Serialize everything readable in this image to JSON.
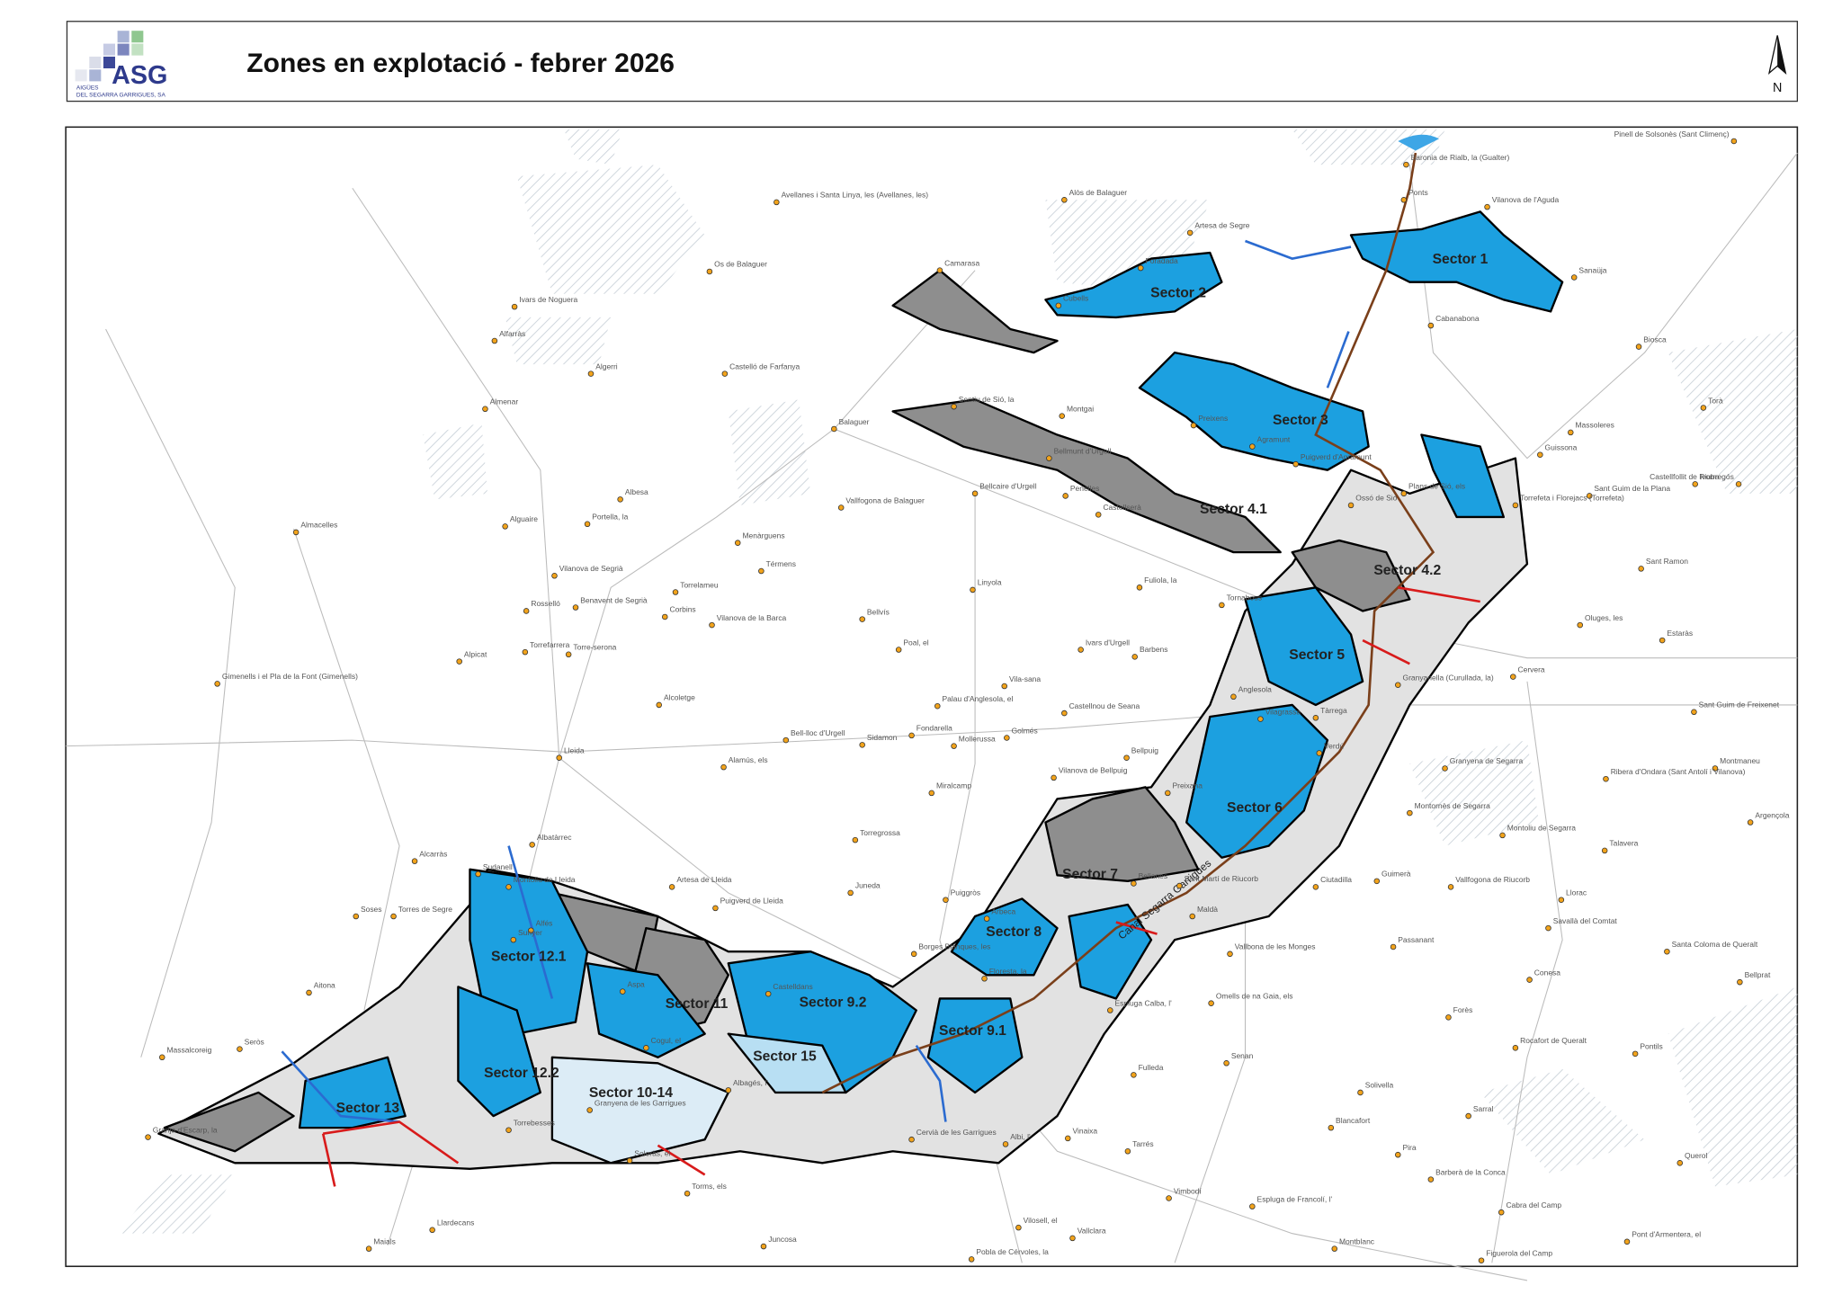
{
  "header": {
    "logo": "ASG",
    "logo_line1": "AIGÜES",
    "logo_line2": "DEL SEGARRA GARRIGUES, SA",
    "title": "Zones en explotació - febrer 2026",
    "north": "N"
  },
  "map": {
    "canal": "Canal Segarra Garrigues",
    "sectors": [
      "Sector 1",
      "Sector 2",
      "Sector 3",
      "Sector 4.1",
      "Sector 4.2",
      "Sector 5",
      "Sector 6",
      "Sector 7",
      "Sector 8",
      "Sector 9.1",
      "Sector 9.2",
      "Sector 10-14",
      "Sector 11",
      "Sector 12.1",
      "Sector 12.2",
      "Sector 13",
      "Sector 15"
    ],
    "towns": [
      "Baronia de Rialb, la (Gualter)",
      "Pinell de Solsonès (Sant Climenç)",
      "Ponts",
      "Vilanova de l'Aguda",
      "Avellanes i Santa Linya, les (Avellanes, les)",
      "Alòs de Balaguer",
      "Artesa de Segre",
      "Foradada",
      "Camarasa",
      "Os de Balaguer",
      "Sanaüja",
      "Ivars de Noguera",
      "Cubells",
      "Cabanabona",
      "Alfarràs",
      "Biosca",
      "Algerri",
      "Castelló de Farfanya",
      "Sentiu de Sió, la",
      "Almenar",
      "Montgai",
      "Torà",
      "Preixens",
      "Balaguer",
      "Massoleres",
      "Agramunt",
      "Bellmunt d'Urgell",
      "Puigverd d'Agramunt",
      "Guissona",
      "Ivorra",
      "Sant Guim de la Plana",
      "Castellfollit de Riubregós",
      "Albesa",
      "Bellcaire d'Urgell",
      "Penelles",
      "Plans de Sió, els",
      "Vallfogona de Balaguer",
      "Ossó de Sió",
      "Torrefeta i Florejacs (Torrefeta)",
      "Castellserà",
      "Almacelles",
      "Alguaire",
      "Portella, la",
      "Menàrguens",
      "Térmens",
      "Sant Ramon",
      "Vilanova de Segrià",
      "Torrelameu",
      "Linyola",
      "Fuliola, la",
      "Estaràs",
      "Rosselló",
      "Benavent de Segrià",
      "Corbins",
      "Tornabous",
      "Bellvís",
      "Vilanova de la Barca",
      "Oluges, les",
      "Ivars d'Urgell",
      "Poal, el",
      "Barbens",
      "Torrefarrera",
      "Torre-serona",
      "Alpicat",
      "Granyanella (Curullada, la)",
      "Cervera",
      "Gimenells i el Pla de la Font (Gimenells)",
      "Vila-sana",
      "Anglesola",
      "Palau d'Anglesola, el",
      "Alcoletge",
      "Castellnou de Seana",
      "Vilagrassa",
      "Tàrrega",
      "Sant Guim de Freixenet",
      "Bell-lloc d'Urgell",
      "Sidamon",
      "Fondarella",
      "Mollerussa",
      "Golmés",
      "Lleida",
      "Bellpuig",
      "Alamús, els",
      "Granyena de Segarra",
      "Montmaneu",
      "Verdú",
      "Ribera d'Ondara (Sant Antolí i Vilanova)",
      "Vilanova de Bellpuig",
      "Miralcamp",
      "Preixana",
      "Montornès de Segarra",
      "Argençola",
      "Montoliu de Segarra",
      "Torregrossa",
      "Talavera",
      "Albatàrrec",
      "Alcarràs",
      "Sudanell",
      "Montoliu de Lleida",
      "Belianes",
      "Sant Martí de Riucorb",
      "Ciutadilla",
      "Guimerà",
      "Vallfogona de Riucorb",
      "Artesa de Lleida",
      "Juneda",
      "Puiggròs",
      "Llorac",
      "Puigverd de Lleida",
      "Maldà",
      "Soses",
      "Torres de Segre",
      "Arbeca",
      "Savallà del Comtat",
      "Passanant",
      "Vallbona de les Monges",
      "Borges Blanques, les",
      "Santa Coloma de Queralt",
      "Alfés",
      "Sunyer",
      "Floresta, la",
      "Conesa",
      "Bellprat",
      "Omells de na Gaia, els",
      "Espluga Calba, l'",
      "Aspa",
      "Castelldans",
      "Cogul, el",
      "Seròs",
      "Massalcoreig",
      "Aitona",
      "Forès",
      "Rocafort de Queralt",
      "Pontils",
      "Senan",
      "Fulleda",
      "Solivella",
      "Albagés, l'",
      "Sarral",
      "Blancafort",
      "Torrebesses",
      "Granyena de les Garrigues",
      "Vinaixa",
      "Cervià de les Garrigues",
      "Albi, l'",
      "Soleràs, el",
      "Granja d'Escarp, la",
      "Tarrés",
      "Pira",
      "Barberà de la Conca",
      "Querol",
      "Torms, els",
      "Vimbodí",
      "Espluga de Francolí, l'",
      "Cabra del Camp",
      "Llardecans",
      "Juncosa",
      "Vilosell, el",
      "Vallclara",
      "Montblanc",
      "Pont d'Armentera, el",
      "Maials",
      "Pobla de Cérvoles, la",
      "Figuerola del Camp"
    ]
  }
}
